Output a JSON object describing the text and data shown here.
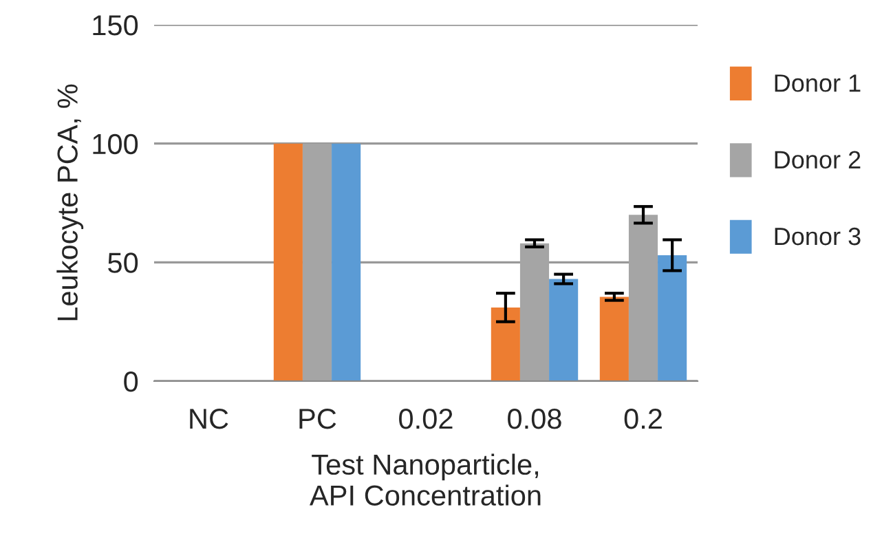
{
  "chart_data": {
    "type": "bar",
    "xlabel": "Test Nanoparticle,\nAPI Concentration",
    "ylabel": "Leukocyte PCA, %",
    "categories": [
      "NC",
      "PC",
      "0.02",
      "0.08",
      "0.2"
    ],
    "series": [
      {
        "name": "Donor 1",
        "color": "#ed7d31",
        "values": [
          null,
          100,
          null,
          31,
          35.5
        ],
        "errors": [
          null,
          null,
          null,
          6,
          1.5
        ]
      },
      {
        "name": "Donor 2",
        "color": "#a5a5a5",
        "values": [
          null,
          100,
          null,
          58,
          70
        ],
        "errors": [
          null,
          null,
          null,
          1.5,
          3.5
        ]
      },
      {
        "name": "Donor 3",
        "color": "#5b9bd5",
        "values": [
          null,
          100,
          null,
          43,
          53
        ],
        "errors": [
          null,
          null,
          null,
          2,
          6.5
        ]
      }
    ],
    "ylim": [
      0,
      150
    ],
    "yticks": [
      0,
      50,
      100,
      150
    ],
    "grid": "y",
    "legend": "right"
  }
}
